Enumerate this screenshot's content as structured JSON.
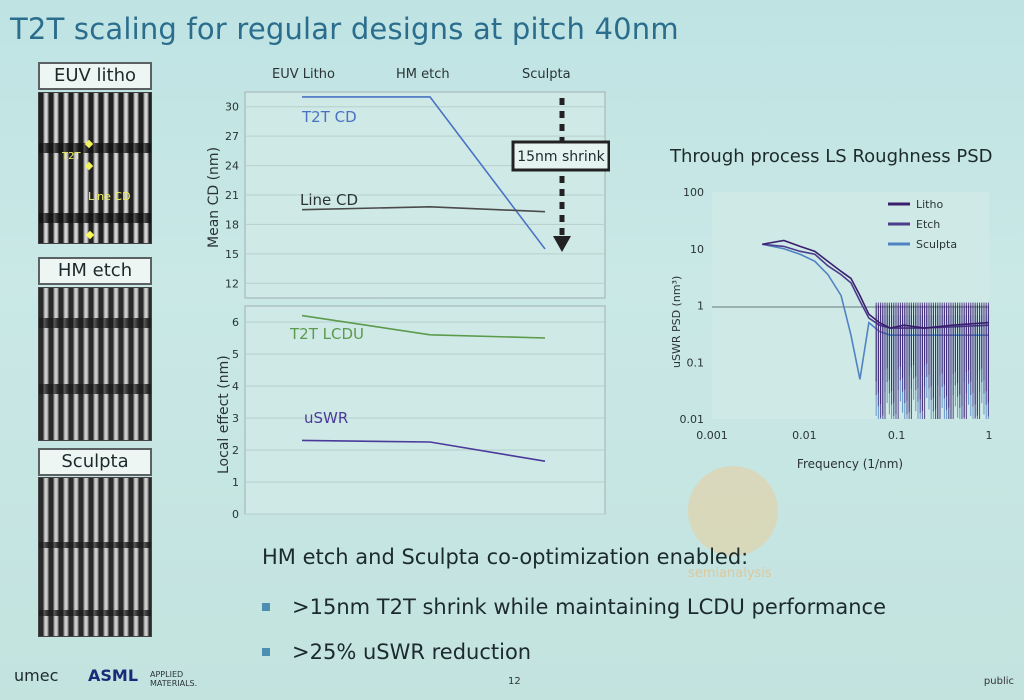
{
  "slide": {
    "title": "T2T scaling for regular designs at pitch 40nm",
    "panels": [
      "EUV litho",
      "HM etch",
      "Sculpta"
    ],
    "sem_annotations": {
      "t2t": "T2T",
      "line_cd": "Line CD"
    },
    "columns": [
      "EUV Litho",
      "HM etch",
      "Sculpta"
    ],
    "callout": "15nm shrink",
    "bullet_heading": "HM etch and Sculpta co-optimization enabled:",
    "bullets": [
      ">15nm T2T shrink while maintaining LCDU performance",
      ">25% uSWR reduction"
    ],
    "footer": {
      "imec": "umec",
      "asml": "ASML",
      "amat": "APPLIED MATERIALS.",
      "page": "12",
      "classification": "public"
    },
    "watermark": "semianalysis"
  },
  "chart_data": [
    {
      "type": "line",
      "categories": [
        "EUV Litho",
        "HM etch",
        "Sculpta"
      ],
      "ylabel": "Mean CD (nm)",
      "yticks": [
        12,
        15,
        18,
        21,
        24,
        27,
        30
      ],
      "ylim": [
        10.5,
        31.5
      ],
      "series": [
        {
          "name": "T2T CD",
          "values": [
            31.0,
            31.0,
            15.5
          ],
          "color": "#4a72c4"
        },
        {
          "name": "Line CD",
          "values": [
            19.5,
            19.8,
            19.3
          ],
          "color": "#4a4a4a"
        }
      ]
    },
    {
      "type": "line",
      "categories": [
        "EUV Litho",
        "HM etch",
        "Sculpta"
      ],
      "ylabel": "Local effect (nm)",
      "yticks": [
        0,
        1,
        2,
        3,
        4,
        5,
        6
      ],
      "ylim": [
        0,
        6.5
      ],
      "series": [
        {
          "name": "T2T LCDU",
          "values": [
            6.2,
            5.6,
            5.5
          ],
          "color": "#5c9a4c"
        },
        {
          "name": "uSWR",
          "values": [
            2.3,
            2.25,
            1.65
          ],
          "color": "#4a3a9a"
        }
      ]
    },
    {
      "type": "line",
      "title": "Through process LS Roughness PSD",
      "xlabel": "Frequency (1/nm)",
      "ylabel": "uSWR PSD (nm³)",
      "xscale": "log",
      "yscale": "log",
      "xticks": [
        "0.001",
        "0.01",
        "0.1",
        "1"
      ],
      "yticks": [
        "0.01",
        "0.1",
        "1",
        "10",
        "100"
      ],
      "xlim": [
        0.001,
        1
      ],
      "ylim": [
        0.01,
        100
      ],
      "legend": "top-right",
      "series": [
        {
          "name": "Litho",
          "color": "#3a1f6e",
          "x": [
            0.0035,
            0.006,
            0.009,
            0.013,
            0.018,
            0.025,
            0.032,
            0.04,
            0.05,
            0.065,
            0.085,
            0.12,
            0.2,
            0.4,
            1.0
          ],
          "y": [
            12,
            14,
            11,
            9,
            6,
            4,
            3,
            1.5,
            0.7,
            0.5,
            0.4,
            0.45,
            0.4,
            0.45,
            0.5
          ]
        },
        {
          "name": "Etch",
          "color": "#4a3d8c",
          "x": [
            0.0035,
            0.006,
            0.009,
            0.013,
            0.018,
            0.025,
            0.032,
            0.04,
            0.05,
            0.065,
            0.085,
            0.12,
            0.2,
            0.4,
            1.0
          ],
          "y": [
            12,
            11,
            9,
            8,
            5,
            3.5,
            2.5,
            1.2,
            0.6,
            0.45,
            0.4,
            0.4,
            0.4,
            0.42,
            0.45
          ]
        },
        {
          "name": "Sculpta",
          "color": "#4f83c4",
          "x": [
            0.0035,
            0.006,
            0.009,
            0.013,
            0.018,
            0.025,
            0.032,
            0.04,
            0.05,
            0.065,
            0.085,
            0.12,
            0.2,
            0.4,
            1.0
          ],
          "y": [
            12,
            10,
            8,
            6,
            3.5,
            1.5,
            0.3,
            0.05,
            0.5,
            0.35,
            0.3,
            0.3,
            0.3,
            0.3,
            0.3
          ]
        }
      ]
    }
  ]
}
